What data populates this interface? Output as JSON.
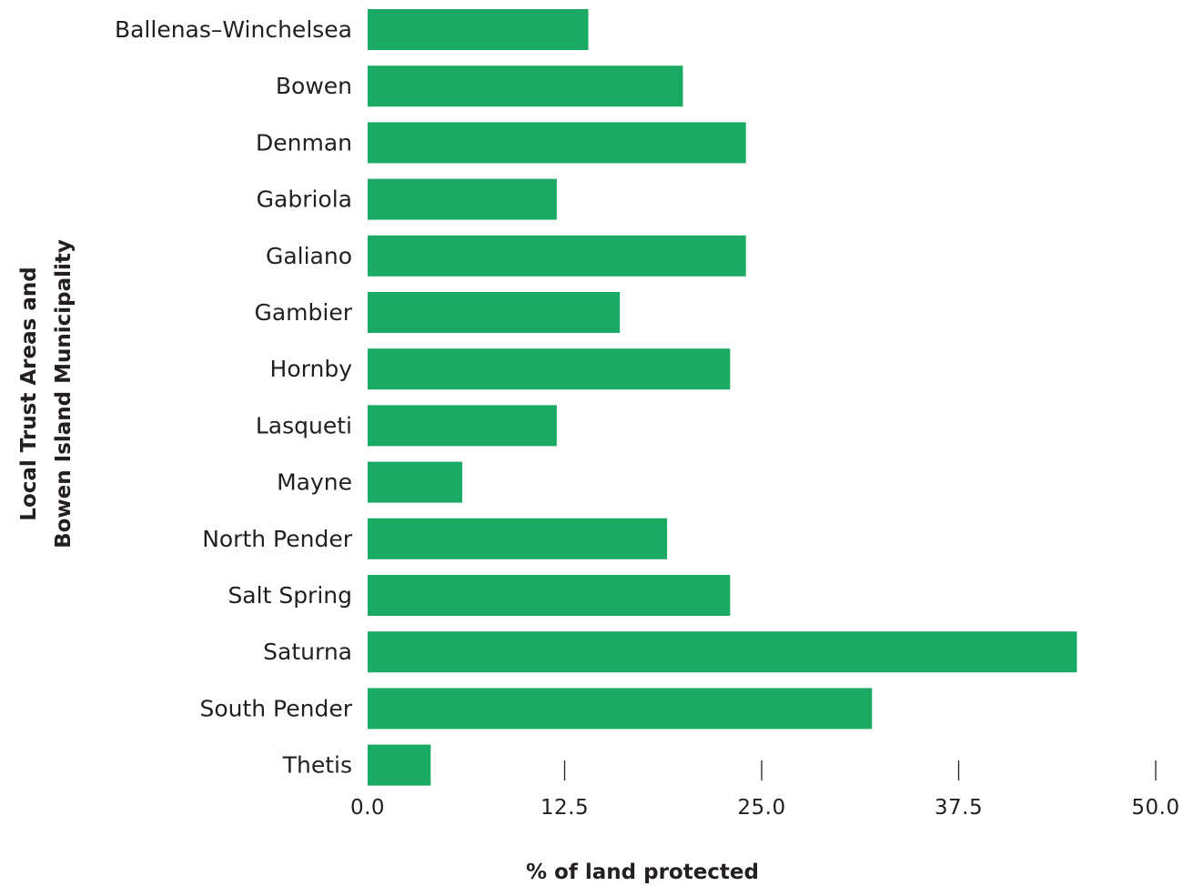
{
  "chart_data": {
    "type": "bar",
    "orientation": "horizontal",
    "title": "",
    "xlabel": "% of land protected",
    "ylabel_lines": [
      "Local Trust Areas and",
      "Bowen Island Municipality"
    ],
    "categories": [
      "Ballenas–Winchelsea",
      "Bowen",
      "Denman",
      "Gabriola",
      "Galiano",
      "Gambier",
      "Hornby",
      "Lasqueti",
      "Mayne",
      "North Pender",
      "Salt Spring",
      "Saturna",
      "South Pender",
      "Thetis"
    ],
    "values": [
      14.0,
      20.0,
      24.0,
      12.0,
      24.0,
      16.0,
      23.0,
      12.0,
      6.0,
      19.0,
      23.0,
      45.0,
      32.0,
      4.0
    ],
    "xlim": [
      0,
      50
    ],
    "xticks": [
      "0.0",
      "12.5",
      "25.0",
      "37.5",
      "50.0"
    ],
    "bar_color": "#1baa63",
    "grid": false,
    "legend": "none"
  }
}
